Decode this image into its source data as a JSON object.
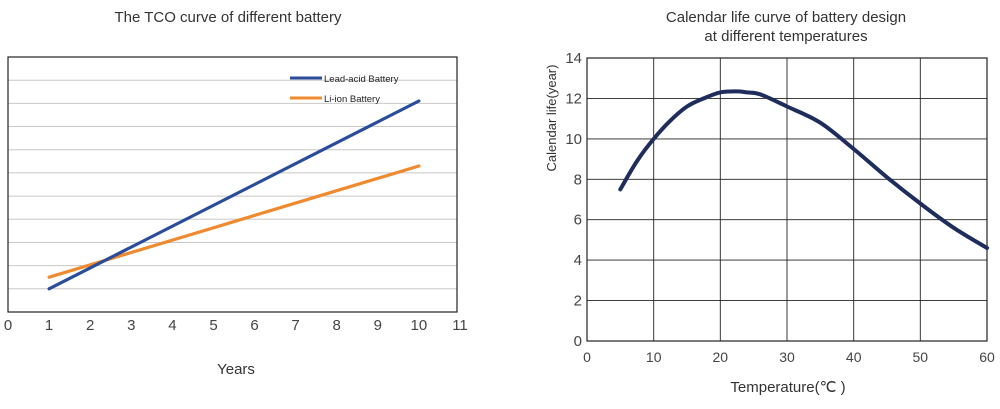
{
  "colors": {
    "lead_acid": "#2a4d9b",
    "li_ion": "#ef8a2f",
    "calendar_curve": "#1f2d5c",
    "grid": "#c8c8c8",
    "axis": "#222222"
  },
  "chart_data": [
    {
      "type": "line",
      "title": "The TCO curve of different battery",
      "xlabel": "Years",
      "ylabel": "",
      "xlim": [
        0,
        11
      ],
      "x_ticks": [
        "0",
        "1",
        "2",
        "3",
        "4",
        "5",
        "6",
        "7",
        "8",
        "9",
        "10",
        "11"
      ],
      "grid": "horizontal",
      "legend_position": "top-right",
      "series": [
        {
          "name": "Lead-acid Battery",
          "color": "#2a4d9b",
          "x": [
            1,
            10
          ],
          "y": [
            1.0,
            9.1
          ]
        },
        {
          "name": "Li-ion Battery",
          "color": "#ef8a2f",
          "x": [
            1,
            10
          ],
          "y": [
            1.5,
            6.3
          ]
        }
      ]
    },
    {
      "type": "line",
      "title_line1": "Calendar life curve of battery design",
      "title_line2": "at different temperatures",
      "xlabel": "Temperature(℃ )",
      "ylabel": "Calendar life(year)",
      "xlim": [
        0,
        60
      ],
      "ylim": [
        0,
        14
      ],
      "x_ticks": [
        "0",
        "10",
        "20",
        "30",
        "40",
        "50",
        "60"
      ],
      "y_ticks": [
        "0",
        "2",
        "4",
        "6",
        "8",
        "10",
        "12",
        "14"
      ],
      "grid": "both",
      "series": [
        {
          "color": "#1f2d5c",
          "x": [
            5,
            7.5,
            10,
            12.5,
            15,
            17.5,
            20,
            22.5,
            24,
            26,
            30,
            35,
            40,
            45,
            50,
            55,
            60
          ],
          "y": [
            7.5,
            8.9,
            10.0,
            10.9,
            11.6,
            12.0,
            12.3,
            12.35,
            12.3,
            12.2,
            11.6,
            10.8,
            9.5,
            8.1,
            6.8,
            5.6,
            4.6
          ]
        }
      ]
    }
  ]
}
